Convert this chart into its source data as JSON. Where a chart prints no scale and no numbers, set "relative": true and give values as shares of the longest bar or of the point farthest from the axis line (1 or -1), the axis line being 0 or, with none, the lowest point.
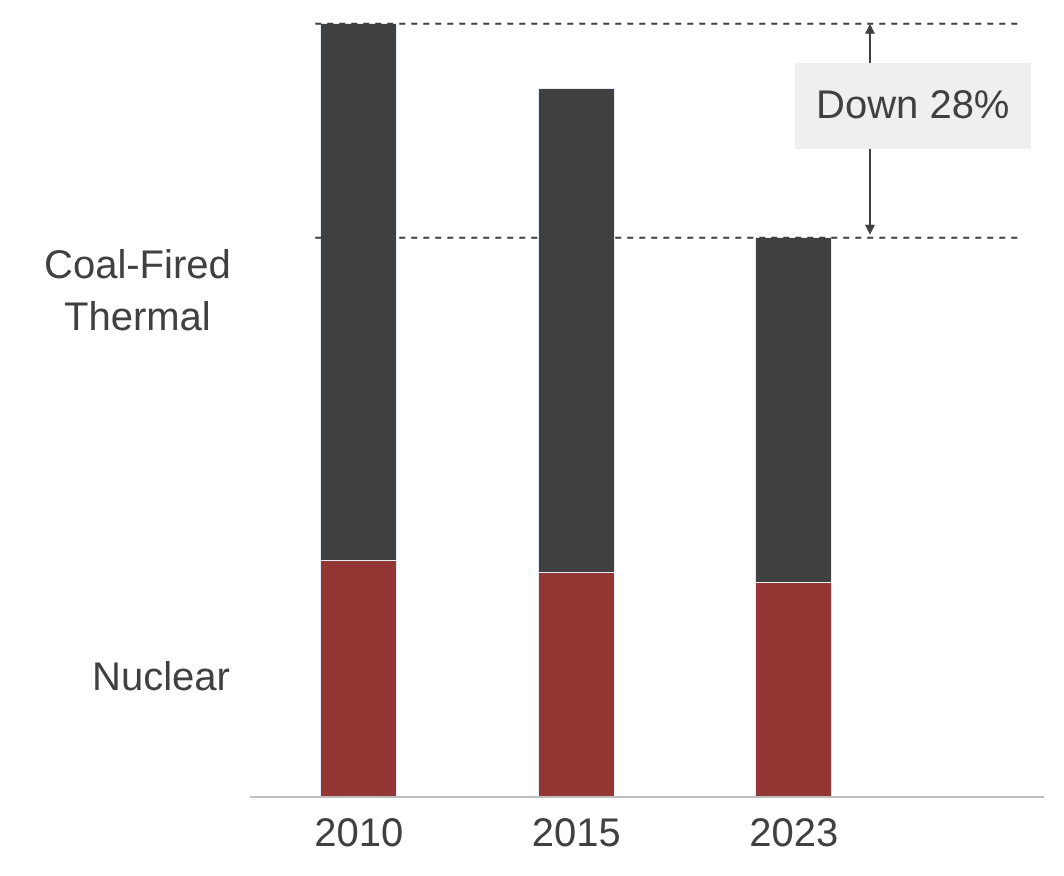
{
  "chart_data": {
    "type": "bar",
    "stacked": true,
    "relative": true,
    "categories": [
      "2010",
      "2015",
      "2023"
    ],
    "series": [
      {
        "name": "Nuclear",
        "color": "#943634",
        "values": [
          0.305,
          0.29,
          0.277
        ]
      },
      {
        "name": "Coal-Fired Thermal",
        "color": "#404040",
        "values": [
          0.695,
          0.626,
          0.446
        ]
      }
    ],
    "ref_lines": [
      {
        "axis": "y",
        "value": 1,
        "line_style": "dotted",
        "color": "#404040"
      },
      {
        "axis": "y",
        "value": 0.723,
        "line_style": "dotted",
        "color": "#404040"
      }
    ],
    "annotations": [
      "Down 28%"
    ],
    "legend": false
  }
}
